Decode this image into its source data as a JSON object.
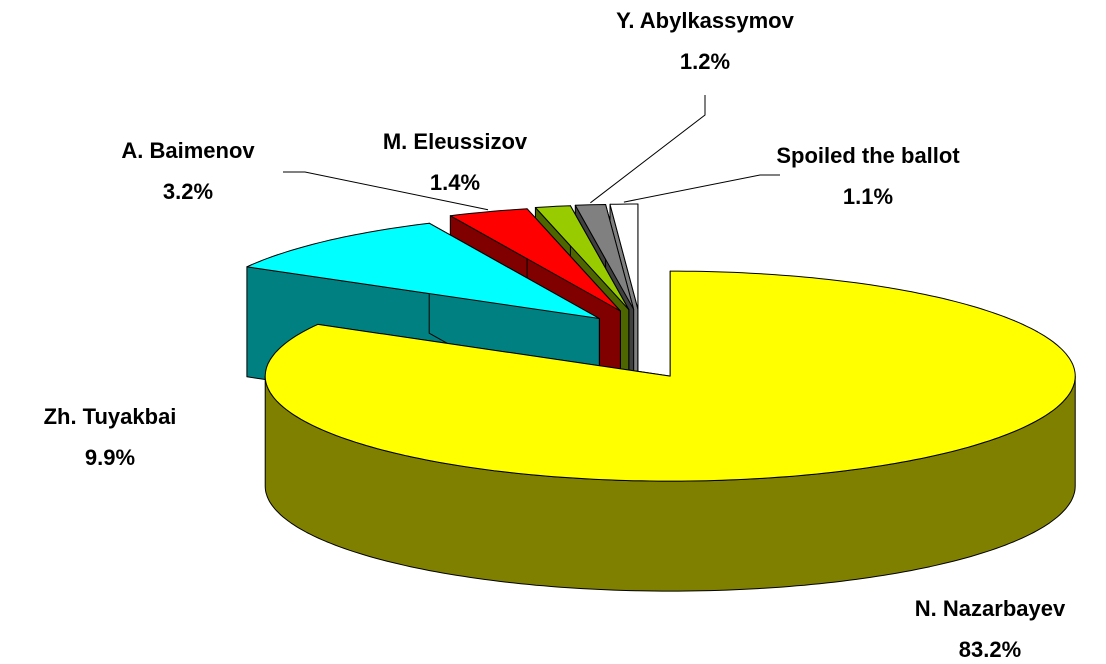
{
  "chart_data": {
    "type": "pie3d",
    "categories": [
      "N. Nazarbayev",
      "Zh. Tuyakbai",
      "A. Baimenov",
      "M. Eleussizov",
      "Y. Abylkassymov",
      "Spoiled the ballot"
    ],
    "values": [
      83.2,
      9.9,
      3.2,
      1.4,
      1.2,
      1.1
    ],
    "value_labels": [
      "83.2%",
      "9.9%",
      "3.2%",
      "1.4%",
      "1.2%",
      "1.1%"
    ],
    "colors": [
      "#ffff00",
      "#00ffff",
      "#ff0000",
      "#99cc00",
      "#808080",
      "#ffffff"
    ]
  }
}
